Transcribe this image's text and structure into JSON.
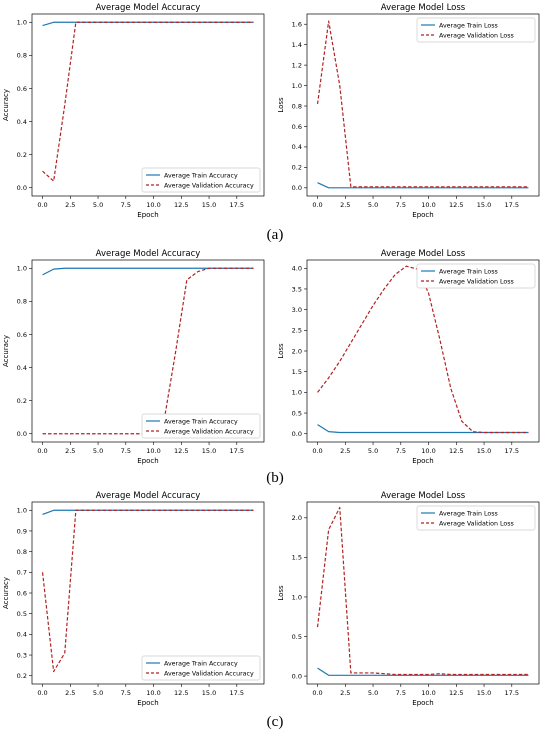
{
  "colors": {
    "train": "#1f77b4",
    "validation": "#b22222",
    "axis": "#000000",
    "legend_border": "#cccccc"
  },
  "panel_labels": [
    "(a)",
    "(b)",
    "(c)"
  ],
  "chart_data": [
    {
      "type": "line",
      "title": "Average Model Accuracy",
      "xlabel": "Epoch",
      "ylabel": "Accuracy",
      "xlim": [
        -0.95,
        19.95
      ],
      "ylim": [
        -0.05,
        1.05
      ],
      "xticks": [
        0.0,
        2.5,
        5.0,
        7.5,
        10.0,
        12.5,
        15.0,
        17.5
      ],
      "xtick_labels": [
        "0.0",
        "2.5",
        "5.0",
        "7.5",
        "10.0",
        "12.5",
        "15.0",
        "17.5"
      ],
      "yticks": [
        0.0,
        0.2,
        0.4,
        0.6,
        0.8,
        1.0
      ],
      "ytick_labels": [
        "0.0",
        "0.2",
        "0.4",
        "0.6",
        "0.8",
        "1.0"
      ],
      "legend_position": "bottom-right",
      "grid": false,
      "x": [
        0,
        1,
        2,
        3,
        4,
        5,
        6,
        7,
        8,
        9,
        10,
        11,
        12,
        13,
        14,
        15,
        16,
        17,
        18,
        19
      ],
      "series": [
        {
          "name": "Average Train Accuracy",
          "style": "solid",
          "values": [
            0.98,
            1.0,
            1.0,
            1.0,
            1.0,
            1.0,
            1.0,
            1.0,
            1.0,
            1.0,
            1.0,
            1.0,
            1.0,
            1.0,
            1.0,
            1.0,
            1.0,
            1.0,
            1.0,
            1.0
          ]
        },
        {
          "name": "Average Validation Accuracy",
          "style": "dashed",
          "values": [
            0.1,
            0.04,
            0.5,
            1.0,
            1.0,
            1.0,
            1.0,
            1.0,
            1.0,
            1.0,
            1.0,
            1.0,
            1.0,
            1.0,
            1.0,
            1.0,
            1.0,
            1.0,
            1.0,
            1.0
          ]
        }
      ]
    },
    {
      "type": "line",
      "title": "Average Model Loss",
      "xlabel": "Epoch",
      "ylabel": "Loss",
      "xlim": [
        -0.95,
        19.95
      ],
      "ylim": [
        -0.08,
        1.7
      ],
      "xticks": [
        0.0,
        2.5,
        5.0,
        7.5,
        10.0,
        12.5,
        15.0,
        17.5
      ],
      "xtick_labels": [
        "0.0",
        "2.5",
        "5.0",
        "7.5",
        "10.0",
        "12.5",
        "15.0",
        "17.5"
      ],
      "yticks": [
        0.0,
        0.2,
        0.4,
        0.6,
        0.8,
        1.0,
        1.2,
        1.4,
        1.6
      ],
      "ytick_labels": [
        "0.0",
        "0.2",
        "0.4",
        "0.6",
        "0.8",
        "1.0",
        "1.2",
        "1.4",
        "1.6"
      ],
      "legend_position": "top-right",
      "grid": false,
      "x": [
        0,
        1,
        2,
        3,
        4,
        5,
        6,
        7,
        8,
        9,
        10,
        11,
        12,
        13,
        14,
        15,
        16,
        17,
        18,
        19
      ],
      "series": [
        {
          "name": "Average Train Loss",
          "style": "solid",
          "values": [
            0.05,
            0.0,
            0.0,
            0.0,
            0.0,
            0.0,
            0.0,
            0.0,
            0.0,
            0.0,
            0.0,
            0.0,
            0.0,
            0.0,
            0.0,
            0.0,
            0.0,
            0.0,
            0.0,
            0.0
          ]
        },
        {
          "name": "Average Validation Loss",
          "style": "dashed",
          "values": [
            0.82,
            1.63,
            1.0,
            0.01,
            0.01,
            0.01,
            0.01,
            0.01,
            0.01,
            0.01,
            0.01,
            0.01,
            0.01,
            0.01,
            0.01,
            0.01,
            0.01,
            0.01,
            0.01,
            0.01
          ]
        }
      ]
    },
    {
      "type": "line",
      "title": "Average Model Accuracy",
      "xlabel": "Epoch",
      "ylabel": "Accuracy",
      "xlim": [
        -0.95,
        19.95
      ],
      "ylim": [
        -0.05,
        1.05
      ],
      "xticks": [
        0.0,
        2.5,
        5.0,
        7.5,
        10.0,
        12.5,
        15.0,
        17.5
      ],
      "xtick_labels": [
        "0.0",
        "2.5",
        "5.0",
        "7.5",
        "10.0",
        "12.5",
        "15.0",
        "17.5"
      ],
      "yticks": [
        0.0,
        0.2,
        0.4,
        0.6,
        0.8,
        1.0
      ],
      "ytick_labels": [
        "0.0",
        "0.2",
        "0.4",
        "0.6",
        "0.8",
        "1.0"
      ],
      "legend_position": "bottom-right",
      "grid": false,
      "x": [
        0,
        1,
        2,
        3,
        4,
        5,
        6,
        7,
        8,
        9,
        10,
        11,
        12,
        13,
        14,
        15,
        16,
        17,
        18,
        19
      ],
      "series": [
        {
          "name": "Average Train Accuracy",
          "style": "solid",
          "values": [
            0.96,
            0.995,
            1.0,
            1.0,
            1.0,
            1.0,
            1.0,
            1.0,
            1.0,
            1.0,
            1.0,
            1.0,
            1.0,
            1.0,
            1.0,
            1.0,
            1.0,
            1.0,
            1.0,
            1.0
          ]
        },
        {
          "name": "Average Validation Accuracy",
          "style": "dashed",
          "values": [
            0.0,
            0.0,
            0.0,
            0.0,
            0.0,
            0.0,
            0.0,
            0.0,
            0.0,
            0.0,
            0.02,
            0.1,
            0.5,
            0.93,
            0.98,
            1.0,
            1.0,
            1.0,
            1.0,
            1.0
          ]
        }
      ]
    },
    {
      "type": "line",
      "title": "Average Model Loss",
      "xlabel": "Epoch",
      "ylabel": "Loss",
      "xlim": [
        -0.95,
        19.95
      ],
      "ylim": [
        -0.2,
        4.2
      ],
      "xticks": [
        0.0,
        2.5,
        5.0,
        7.5,
        10.0,
        12.5,
        15.0,
        17.5
      ],
      "xtick_labels": [
        "0.0",
        "2.5",
        "5.0",
        "7.5",
        "10.0",
        "12.5",
        "15.0",
        "17.5"
      ],
      "yticks": [
        0.0,
        0.5,
        1.0,
        1.5,
        2.0,
        2.5,
        3.0,
        3.5,
        4.0
      ],
      "ytick_labels": [
        "0.0",
        "0.5",
        "1.0",
        "1.5",
        "2.0",
        "2.5",
        "3.0",
        "3.5",
        "4.0"
      ],
      "legend_position": "top-right",
      "grid": false,
      "x": [
        0,
        1,
        2,
        3,
        4,
        5,
        6,
        7,
        8,
        9,
        10,
        11,
        12,
        13,
        14,
        15,
        16,
        17,
        18,
        19
      ],
      "series": [
        {
          "name": "Average Train Loss",
          "style": "solid",
          "values": [
            0.22,
            0.05,
            0.03,
            0.03,
            0.03,
            0.03,
            0.03,
            0.03,
            0.03,
            0.03,
            0.03,
            0.03,
            0.03,
            0.03,
            0.03,
            0.03,
            0.03,
            0.03,
            0.03,
            0.03
          ]
        },
        {
          "name": "Average Validation Loss",
          "style": "dashed",
          "values": [
            1.0,
            1.35,
            1.75,
            2.2,
            2.65,
            3.1,
            3.5,
            3.85,
            4.05,
            3.98,
            3.4,
            2.3,
            1.1,
            0.3,
            0.05,
            0.03,
            0.03,
            0.03,
            0.03,
            0.03
          ]
        }
      ]
    },
    {
      "type": "line",
      "title": "Average Model Accuracy",
      "xlabel": "Epoch",
      "ylabel": "Accuracy",
      "xlim": [
        -0.95,
        19.95
      ],
      "ylim": [
        0.16,
        1.04
      ],
      "xticks": [
        0.0,
        2.5,
        5.0,
        7.5,
        10.0,
        12.5,
        15.0,
        17.5
      ],
      "xtick_labels": [
        "0.0",
        "2.5",
        "5.0",
        "7.5",
        "10.0",
        "12.5",
        "15.0",
        "17.5"
      ],
      "yticks": [
        0.2,
        0.3,
        0.4,
        0.5,
        0.6,
        0.7,
        0.8,
        0.9,
        1.0
      ],
      "ytick_labels": [
        "0.2",
        "0.3",
        "0.4",
        "0.5",
        "0.6",
        "0.7",
        "0.8",
        "0.9",
        "1.0"
      ],
      "legend_position": "bottom-right",
      "grid": false,
      "x": [
        0,
        1,
        2,
        3,
        4,
        5,
        6,
        7,
        8,
        9,
        10,
        11,
        12,
        13,
        14,
        15,
        16,
        17,
        18,
        19
      ],
      "series": [
        {
          "name": "Average Train Accuracy",
          "style": "solid",
          "values": [
            0.98,
            1.0,
            1.0,
            1.0,
            1.0,
            1.0,
            1.0,
            1.0,
            1.0,
            1.0,
            1.0,
            1.0,
            1.0,
            1.0,
            1.0,
            1.0,
            1.0,
            1.0,
            1.0,
            1.0
          ]
        },
        {
          "name": "Average Validation Accuracy",
          "style": "dashed",
          "values": [
            0.7,
            0.22,
            0.31,
            1.0,
            1.0,
            1.0,
            1.0,
            1.0,
            1.0,
            1.0,
            1.0,
            1.0,
            1.0,
            1.0,
            1.0,
            1.0,
            1.0,
            1.0,
            1.0,
            1.0
          ]
        }
      ]
    },
    {
      "type": "line",
      "title": "Average Model Loss",
      "xlabel": "Epoch",
      "ylabel": "Loss",
      "xlim": [
        -0.95,
        19.95
      ],
      "ylim": [
        -0.1,
        2.2
      ],
      "xticks": [
        0.0,
        2.5,
        5.0,
        7.5,
        10.0,
        12.5,
        15.0,
        17.5
      ],
      "xtick_labels": [
        "0.0",
        "2.5",
        "5.0",
        "7.5",
        "10.0",
        "12.5",
        "15.0",
        "17.5"
      ],
      "yticks": [
        0.0,
        0.5,
        1.0,
        1.5,
        2.0
      ],
      "ytick_labels": [
        "0.0",
        "0.5",
        "1.0",
        "1.5",
        "2.0"
      ],
      "legend_position": "top-right",
      "grid": false,
      "x": [
        0,
        1,
        2,
        3,
        4,
        5,
        6,
        7,
        8,
        9,
        10,
        11,
        12,
        13,
        14,
        15,
        16,
        17,
        18,
        19
      ],
      "series": [
        {
          "name": "Average Train Loss",
          "style": "solid",
          "values": [
            0.1,
            0.01,
            0.01,
            0.01,
            0.01,
            0.01,
            0.01,
            0.01,
            0.01,
            0.01,
            0.01,
            0.01,
            0.01,
            0.01,
            0.01,
            0.01,
            0.01,
            0.01,
            0.01,
            0.01
          ]
        },
        {
          "name": "Average Validation Loss",
          "style": "dashed",
          "values": [
            0.62,
            1.85,
            2.13,
            0.04,
            0.04,
            0.04,
            0.03,
            0.02,
            0.02,
            0.02,
            0.02,
            0.03,
            0.02,
            0.02,
            0.02,
            0.02,
            0.02,
            0.02,
            0.02,
            0.02
          ]
        }
      ]
    }
  ]
}
